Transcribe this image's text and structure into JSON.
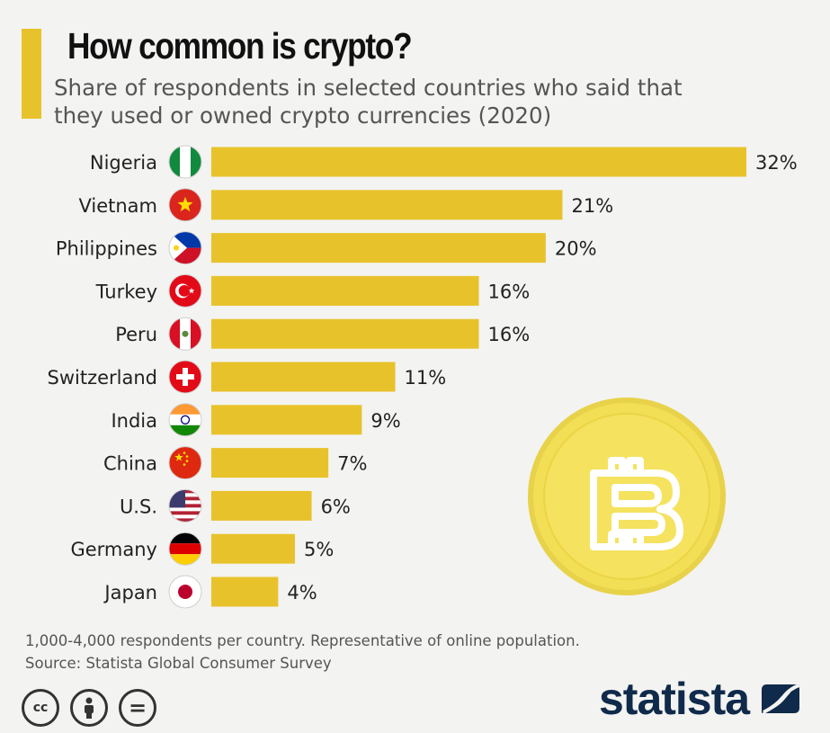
{
  "header": {
    "title": "How common is crypto?",
    "subtitle": "Share of respondents in selected countries who said that they used or owned crypto currencies (2020)"
  },
  "chart_data": {
    "type": "bar",
    "orientation": "horizontal",
    "title": "How common is crypto?",
    "subtitle": "Share of respondents in selected countries who said that they used or owned crypto currencies (2020)",
    "categories": [
      "Nigeria",
      "Vietnam",
      "Philippines",
      "Turkey",
      "Peru",
      "Switzerland",
      "India",
      "China",
      "U.S.",
      "Germany",
      "Japan"
    ],
    "values": [
      32,
      21,
      20,
      16,
      16,
      11,
      9,
      7,
      6,
      5,
      4
    ],
    "value_labels": [
      "32%",
      "21%",
      "20%",
      "16%",
      "16%",
      "11%",
      "9%",
      "7%",
      "6%",
      "5%",
      "4%"
    ],
    "flag_icons": [
      "nigeria-flag-icon",
      "vietnam-flag-icon",
      "philippines-flag-icon",
      "turkey-flag-icon",
      "peru-flag-icon",
      "switzerland-flag-icon",
      "india-flag-icon",
      "china-flag-icon",
      "us-flag-icon",
      "germany-flag-icon",
      "japan-flag-icon"
    ],
    "xlim": [
      0,
      32
    ],
    "unit": "%",
    "grid": false,
    "legend": "none",
    "bar_color": "#e8c22b"
  },
  "decoration": {
    "icon": "bitcoin-coin-icon",
    "color": "#f2df55"
  },
  "footer": {
    "note": "1,000-4,000 respondents per country. Representative of online population.",
    "source": "Source: Statista Global Consumer Survey",
    "license_icons": [
      "creative-commons-icon",
      "attribution-icon",
      "no-derivatives-icon"
    ],
    "cc_glyph": "cc",
    "nd_glyph": "=",
    "brand": "statista"
  },
  "colors": {
    "accent": "#e8c22b",
    "background": "#f3f3f1",
    "brand": "#0f2a4a",
    "text_muted": "#555555"
  }
}
